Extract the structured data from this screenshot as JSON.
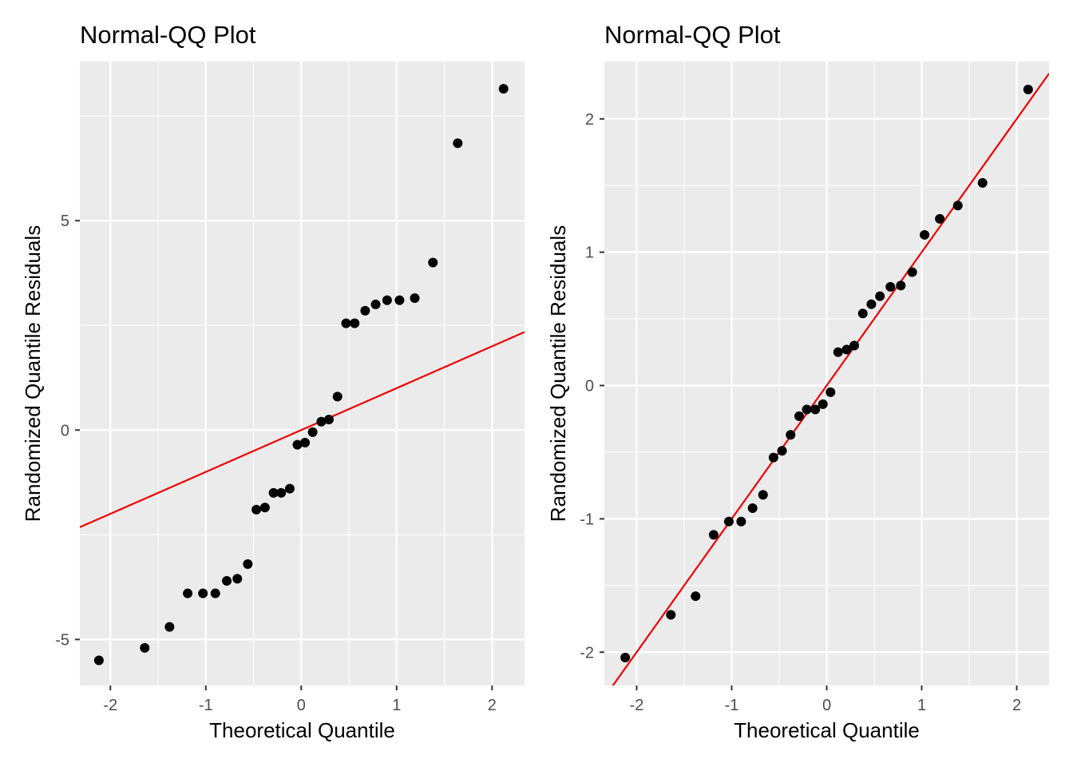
{
  "chart_data": [
    {
      "type": "scatter",
      "title": "Normal-QQ Plot",
      "xlabel": "Theoretical Quantile",
      "ylabel": "Randomized Quantile Residuals",
      "xlim": [
        -2.32,
        2.34
      ],
      "ylim": [
        -6.1,
        8.8
      ],
      "x_ticks": [
        -2,
        -1,
        0,
        1,
        2
      ],
      "x_tick_labels": [
        "-2",
        "-1",
        "0",
        "1",
        "2"
      ],
      "y_ticks": [
        -5,
        0,
        5
      ],
      "y_tick_labels": [
        "-5",
        "0",
        "5"
      ],
      "grid": true,
      "reference_line": {
        "intercept": 0,
        "slope": 1,
        "color": "#ee0000"
      },
      "series": [
        {
          "x": [
            -2.12,
            -1.64,
            -1.38,
            -1.19,
            -1.03,
            -0.9,
            -0.78,
            -0.67,
            -0.56,
            -0.47,
            -0.38,
            -0.29,
            -0.21,
            -0.12,
            -0.04,
            0.04,
            0.12,
            0.21,
            0.29,
            0.38,
            0.47,
            0.56,
            0.67,
            0.78,
            0.9,
            1.03,
            1.19,
            1.38,
            1.64,
            2.12
          ],
          "y": [
            -5.5,
            -5.2,
            -4.7,
            -3.9,
            -3.9,
            -3.9,
            -3.6,
            -3.55,
            -3.2,
            -1.9,
            -1.85,
            -1.5,
            -1.5,
            -1.4,
            -0.35,
            -0.3,
            -0.05,
            0.2,
            0.25,
            0.8,
            2.55,
            2.55,
            2.85,
            3.0,
            3.1,
            3.1,
            3.15,
            4.0,
            6.85,
            8.15
          ]
        }
      ],
      "point_color": "#000000",
      "panel_background": "#ebebeb"
    },
    {
      "type": "scatter",
      "title": "Normal-QQ Plot",
      "xlabel": "Theoretical Quantile",
      "ylabel": "Randomized Quantile Residuals",
      "xlim": [
        -2.34,
        2.34
      ],
      "ylim": [
        -2.25,
        2.43
      ],
      "x_ticks": [
        -2,
        -1,
        0,
        1,
        2
      ],
      "x_tick_labels": [
        "-2",
        "-1",
        "0",
        "1",
        "2"
      ],
      "y_ticks": [
        -2,
        -1,
        0,
        1,
        2
      ],
      "y_tick_labels": [
        "-2",
        "-1",
        "0",
        "1",
        "2"
      ],
      "grid": true,
      "reference_line": {
        "intercept": 0,
        "slope": 1,
        "color": "#ee0000"
      },
      "series": [
        {
          "x": [
            -2.12,
            -1.64,
            -1.38,
            -1.19,
            -1.03,
            -0.9,
            -0.78,
            -0.67,
            -0.56,
            -0.47,
            -0.38,
            -0.29,
            -0.21,
            -0.12,
            -0.04,
            0.04,
            0.12,
            0.21,
            0.29,
            0.38,
            0.47,
            0.56,
            0.67,
            0.78,
            0.9,
            1.03,
            1.19,
            1.38,
            1.64,
            2.12
          ],
          "y": [
            -2.04,
            -1.72,
            -1.58,
            -1.12,
            -1.02,
            -1.02,
            -0.92,
            -0.82,
            -0.54,
            -0.49,
            -0.37,
            -0.23,
            -0.18,
            -0.18,
            -0.14,
            -0.05,
            0.25,
            0.27,
            0.3,
            0.54,
            0.61,
            0.67,
            0.74,
            0.75,
            0.85,
            1.13,
            1.25,
            1.35,
            1.52,
            2.22
          ]
        }
      ],
      "point_color": "#000000",
      "panel_background": "#ebebeb"
    }
  ]
}
